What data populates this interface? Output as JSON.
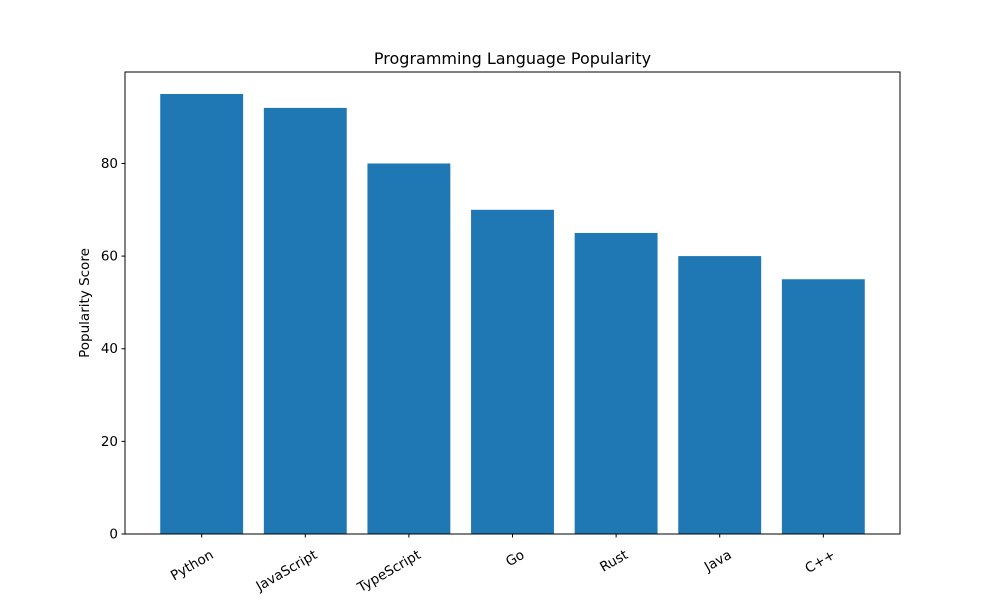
{
  "chart_data": {
    "type": "bar",
    "title": "Programming Language Popularity",
    "xlabel": "",
    "ylabel": "Popularity Score",
    "categories": [
      "Python",
      "JavaScript",
      "TypeScript",
      "Go",
      "Rust",
      "Java",
      "C++"
    ],
    "values": [
      95,
      92,
      80,
      70,
      65,
      60,
      55
    ],
    "ylim": [
      0,
      99.75
    ],
    "yticks": [
      0,
      20,
      40,
      60,
      80
    ],
    "grid": false,
    "bar_color": "#1f77b4"
  }
}
